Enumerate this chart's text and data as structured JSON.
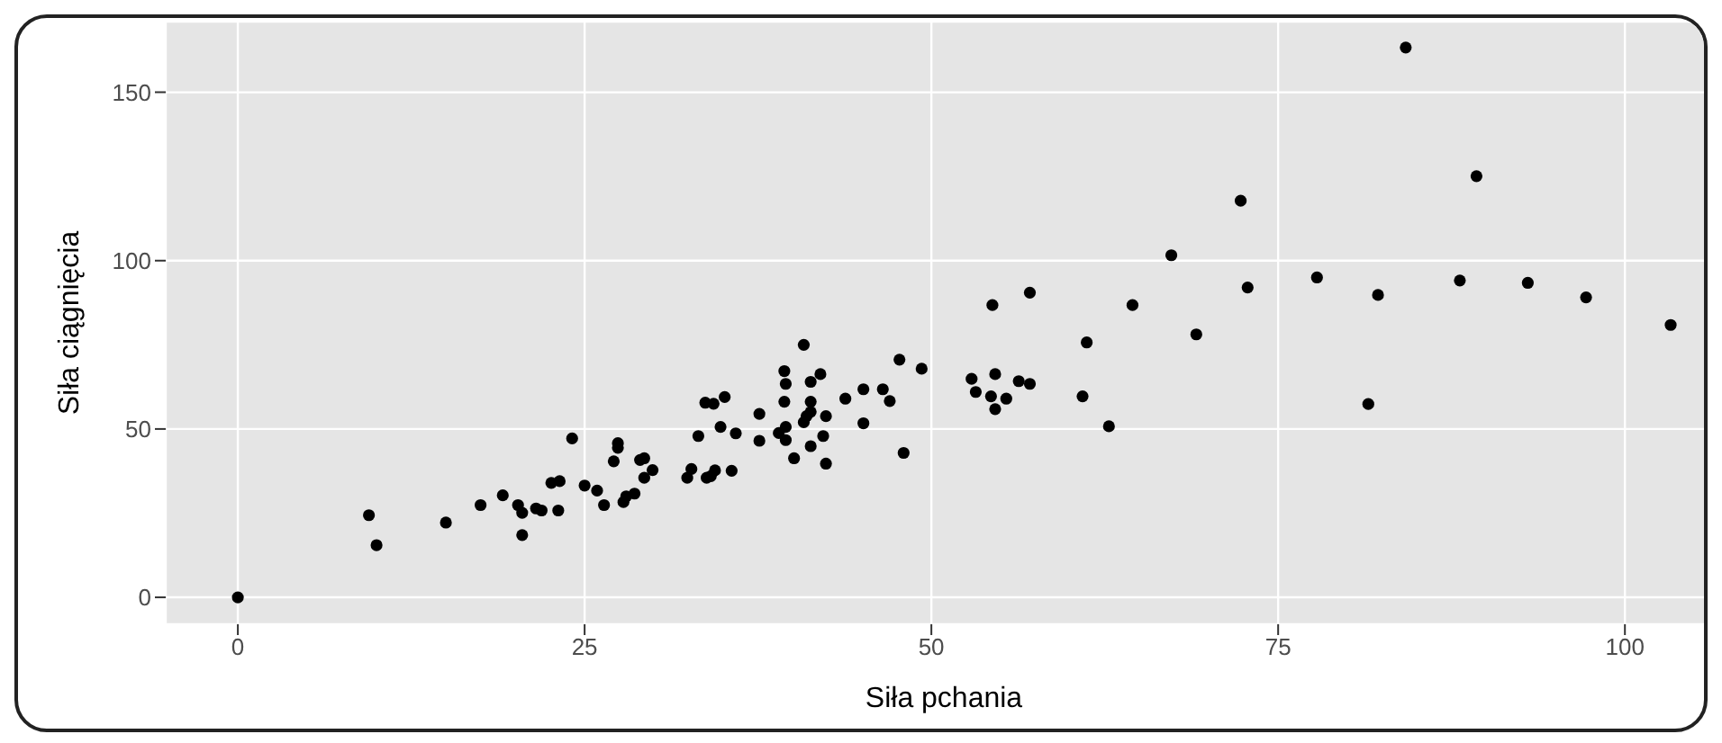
{
  "chart_data": {
    "type": "scatter",
    "xlabel": "Siła pchania",
    "ylabel": "Siła ciągnięcia",
    "x": [
      0,
      9.45,
      10.0,
      15.0,
      17.5,
      19.1,
      20.2,
      20.5,
      20.5,
      21.5,
      21.9,
      22.6,
      23.2,
      23.1,
      24.1,
      25.0,
      25.9,
      26.4,
      27.1,
      27.4,
      27.4,
      27.8,
      28.0,
      28.6,
      29.0,
      29.3,
      29.3,
      29.9,
      32.4,
      32.7,
      33.2,
      33.7,
      34.3,
      33.8,
      34.1,
      34.4,
      34.8,
      35.1,
      35.6,
      35.9,
      37.6,
      37.6,
      39.0,
      39.4,
      39.5,
      39.4,
      39.5,
      39.5,
      40.1,
      40.8,
      41.3,
      42.0,
      41.3,
      41.0,
      40.8,
      41.3,
      41.3,
      42.4,
      42.2,
      42.4,
      43.8,
      45.1,
      45.1,
      46.5,
      47.0,
      47.7,
      48.0,
      49.3,
      54.4,
      57.1,
      52.9,
      53.2,
      54.6,
      54.3,
      54.6,
      55.4,
      56.3,
      57.1,
      60.9,
      61.2,
      62.8,
      64.5,
      67.3,
      69.1,
      72.8,
      84.2,
      72.3,
      77.8,
      82.2,
      81.5,
      89.3,
      88.1,
      93.0,
      97.2,
      103.3
    ],
    "series": [
      {
        "color": "#000000",
        "values": [
          0,
          24.4,
          15.5,
          22.2,
          27.4,
          30.3,
          27.4,
          25.1,
          18.5,
          26.4,
          25.8,
          34.0,
          34.5,
          25.8,
          47.2,
          33.2,
          31.7,
          27.4,
          40.4,
          45.8,
          44.4,
          28.3,
          30.0,
          30.8,
          40.8,
          41.3,
          35.5,
          37.8,
          35.5,
          38.1,
          47.9,
          57.8,
          57.5,
          35.5,
          36.0,
          37.7,
          50.6,
          59.5,
          37.6,
          48.7,
          54.5,
          46.5,
          48.8,
          67.2,
          63.4,
          58.1,
          50.6,
          46.7,
          41.3,
          75.0,
          64.0,
          66.3,
          58.1,
          53.8,
          52.0,
          55.1,
          44.9,
          53.8,
          47.9,
          39.7,
          59.0,
          61.8,
          51.7,
          61.8,
          58.3,
          70.6,
          42.9,
          67.9,
          86.8,
          90.5,
          64.9,
          61.0,
          66.3,
          59.7,
          55.9,
          59.0,
          64.2,
          63.4,
          59.7,
          75.7,
          50.8,
          86.8,
          101.6,
          78.1,
          92.0,
          163.3,
          117.8,
          95.0,
          89.8,
          57.4,
          125.1,
          94.1,
          93.4,
          89.1,
          80.9
        ]
      }
    ],
    "xlim": [
      -5.2,
      107
    ],
    "xticks": [
      0,
      25,
      50,
      75,
      100
    ],
    "ylim": [
      -8,
      171
    ],
    "yticks": [
      0,
      50,
      100,
      150
    ],
    "grid": true,
    "marker": "circle",
    "legend": false
  }
}
